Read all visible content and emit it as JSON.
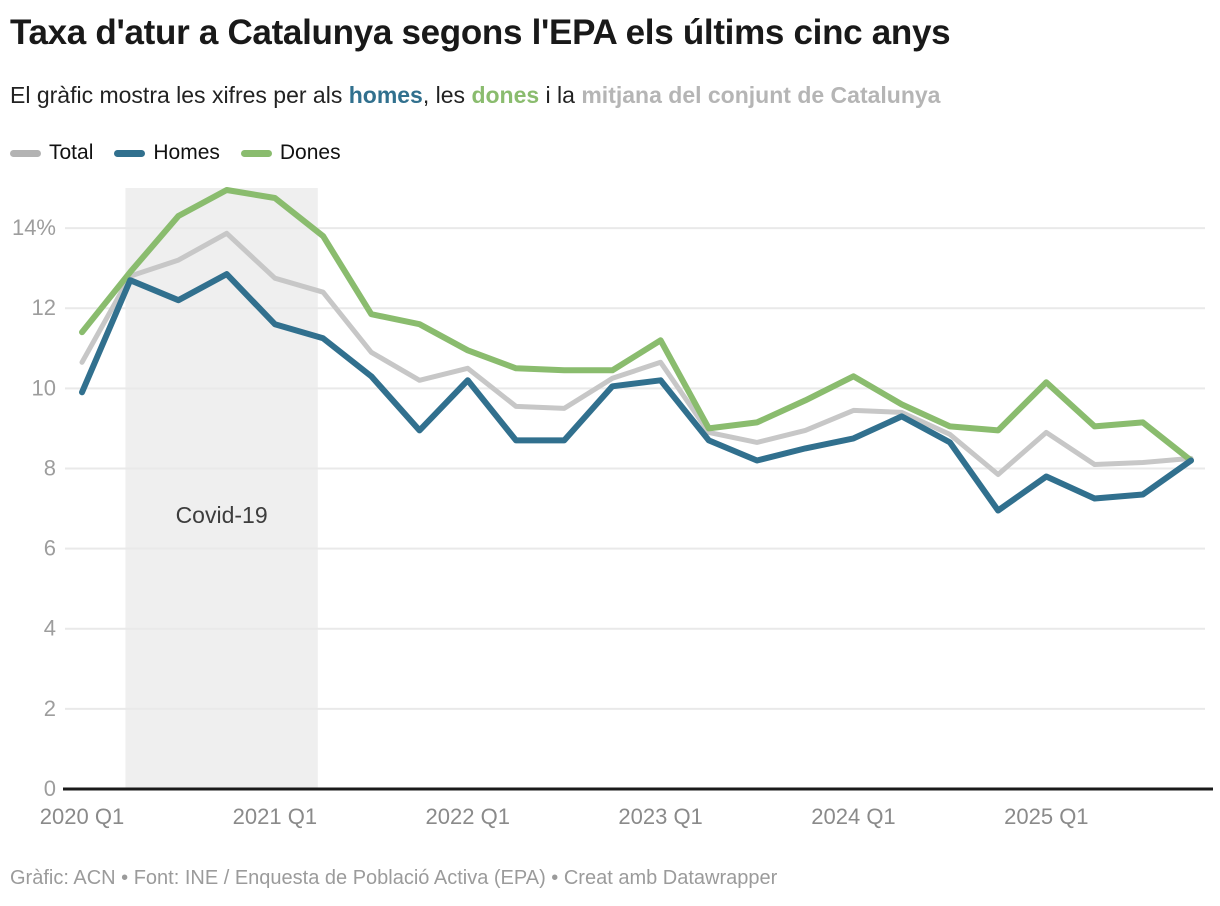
{
  "header": {
    "title": "Taxa d'atur a Catalunya segons l'EPA els últims cinc anys",
    "subtitle": {
      "p1": "El gràfic mostra les xifres per als ",
      "homes": "homes",
      "p2": ", les ",
      "dones": "dones",
      "p3": " i la ",
      "mitjana": "mitjana del conjunt de Catalunya"
    }
  },
  "colors": {
    "homes": "#31708e",
    "dones": "#8abc6e",
    "total_line": "#c7c7c7",
    "subtitle_muted": "#b5b5b5",
    "band_fill": "#efefef",
    "gridline": "#e9e9e9",
    "axis_line": "#1a1a1a",
    "y_label": "#9d9d9d",
    "x_label": "#8a8a8a",
    "band_label": "#3d3d3d"
  },
  "legend": [
    {
      "label": "Total",
      "color": "#b3b3b3"
    },
    {
      "label": "Homes",
      "color": "#31708e"
    },
    {
      "label": "Dones",
      "color": "#8abc6e"
    }
  ],
  "chart_data": {
    "type": "line",
    "x": [
      "2020 Q1",
      "2020 Q2",
      "2020 Q3",
      "2020 Q4",
      "2021 Q1",
      "2021 Q2",
      "2021 Q3",
      "2021 Q4",
      "2022 Q1",
      "2022 Q2",
      "2022 Q3",
      "2022 Q4",
      "2023 Q1",
      "2023 Q2",
      "2023 Q3",
      "2023 Q4",
      "2024 Q1",
      "2024 Q2",
      "2024 Q3",
      "2024 Q4",
      "2025 Q1",
      "2025 Q2",
      "2025 Q3",
      "2025 Q4"
    ],
    "series": [
      {
        "name": "Total",
        "color": "#c7c7c7",
        "stroke_width": 5,
        "values": [
          10.65,
          12.8,
          13.2,
          13.87,
          12.75,
          12.4,
          10.9,
          10.2,
          10.5,
          9.55,
          9.5,
          10.25,
          10.65,
          8.9,
          8.65,
          8.95,
          9.45,
          9.4,
          8.85,
          7.85,
          8.9,
          8.1,
          8.15,
          8.25
        ]
      },
      {
        "name": "Dones",
        "color": "#8abc6e",
        "stroke_width": 6,
        "values": [
          11.4,
          12.9,
          14.3,
          14.95,
          14.75,
          13.8,
          11.85,
          11.6,
          10.95,
          10.5,
          10.45,
          10.45,
          11.2,
          9.0,
          9.15,
          9.7,
          10.3,
          9.6,
          9.05,
          8.95,
          10.15,
          9.05,
          9.15,
          8.2
        ]
      },
      {
        "name": "Homes",
        "color": "#31708e",
        "stroke_width": 6,
        "values": [
          9.9,
          12.7,
          12.2,
          12.85,
          11.6,
          11.25,
          10.3,
          8.95,
          10.2,
          8.7,
          8.7,
          10.05,
          10.2,
          8.7,
          8.2,
          8.5,
          8.75,
          9.3,
          8.65,
          6.95,
          7.8,
          7.25,
          7.35,
          8.2
        ]
      }
    ],
    "ylim": [
      0,
      15
    ],
    "yticks": [
      0,
      2,
      4,
      6,
      8,
      10,
      12,
      14
    ],
    "ytick_top_label": "14%",
    "x_tick_every": 4,
    "grid": true,
    "legend_position": "top-left",
    "annotation_band": {
      "label": "Covid-19",
      "from_index": 0.9,
      "to_index": 4.89
    }
  },
  "footer": {
    "text": "Gràfic: ACN • Font: INE / Enquesta de Població Activa (EPA) • Creat amb Datawrapper"
  }
}
